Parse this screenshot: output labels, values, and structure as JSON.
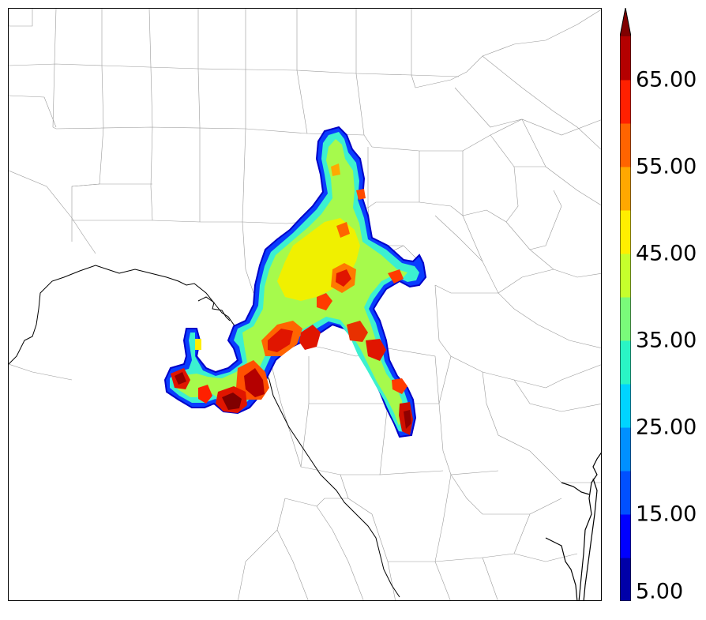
{
  "colorbar": {
    "min": 5,
    "max": 70,
    "step": 5,
    "extend": "max",
    "tick_labels": [
      "65.00",
      "55.00",
      "45.00",
      "35.00",
      "25.00",
      "15.00",
      "5.00"
    ],
    "tick_values": [
      65,
      55,
      45,
      35,
      25,
      15,
      5
    ],
    "colors": [
      "#0000a8",
      "#0000ff",
      "#0050ff",
      "#0090ff",
      "#00d4ff",
      "#2af5c5",
      "#7afa7a",
      "#c6ff2c",
      "#ffee00",
      "#ffa800",
      "#ff6400",
      "#ff2000",
      "#b40000"
    ],
    "extend_color": "#800000"
  },
  "map": {
    "description_layers": [
      "county boundaries",
      "state boundary",
      "coastline",
      "precipitation field"
    ]
  }
}
